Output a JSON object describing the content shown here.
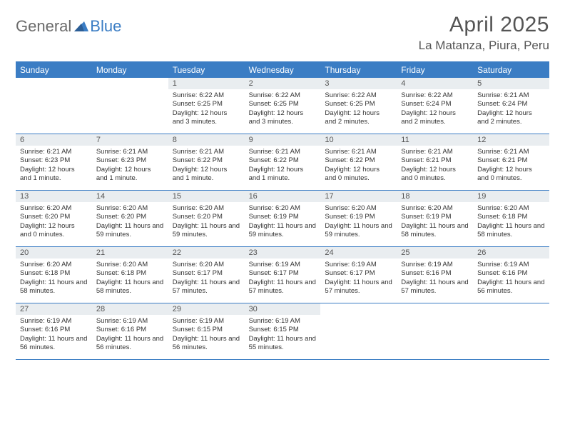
{
  "logo": {
    "text1": "General",
    "text2": "Blue"
  },
  "title": {
    "month": "April 2025",
    "location": "La Matanza, Piura, Peru"
  },
  "colors": {
    "header_bg": "#3b7dc4",
    "header_text": "#ffffff",
    "daynum_bg": "#e9edf0",
    "border": "#3b7dc4",
    "body_text": "#333333",
    "title_text": "#555555"
  },
  "dayNames": [
    "Sunday",
    "Monday",
    "Tuesday",
    "Wednesday",
    "Thursday",
    "Friday",
    "Saturday"
  ],
  "weeks": [
    [
      {
        "blank": true
      },
      {
        "blank": true
      },
      {
        "day": "1",
        "sunrise": "Sunrise: 6:22 AM",
        "sunset": "Sunset: 6:25 PM",
        "daylight": "Daylight: 12 hours and 3 minutes."
      },
      {
        "day": "2",
        "sunrise": "Sunrise: 6:22 AM",
        "sunset": "Sunset: 6:25 PM",
        "daylight": "Daylight: 12 hours and 3 minutes."
      },
      {
        "day": "3",
        "sunrise": "Sunrise: 6:22 AM",
        "sunset": "Sunset: 6:25 PM",
        "daylight": "Daylight: 12 hours and 2 minutes."
      },
      {
        "day": "4",
        "sunrise": "Sunrise: 6:22 AM",
        "sunset": "Sunset: 6:24 PM",
        "daylight": "Daylight: 12 hours and 2 minutes."
      },
      {
        "day": "5",
        "sunrise": "Sunrise: 6:21 AM",
        "sunset": "Sunset: 6:24 PM",
        "daylight": "Daylight: 12 hours and 2 minutes."
      }
    ],
    [
      {
        "day": "6",
        "sunrise": "Sunrise: 6:21 AM",
        "sunset": "Sunset: 6:23 PM",
        "daylight": "Daylight: 12 hours and 1 minute."
      },
      {
        "day": "7",
        "sunrise": "Sunrise: 6:21 AM",
        "sunset": "Sunset: 6:23 PM",
        "daylight": "Daylight: 12 hours and 1 minute."
      },
      {
        "day": "8",
        "sunrise": "Sunrise: 6:21 AM",
        "sunset": "Sunset: 6:22 PM",
        "daylight": "Daylight: 12 hours and 1 minute."
      },
      {
        "day": "9",
        "sunrise": "Sunrise: 6:21 AM",
        "sunset": "Sunset: 6:22 PM",
        "daylight": "Daylight: 12 hours and 1 minute."
      },
      {
        "day": "10",
        "sunrise": "Sunrise: 6:21 AM",
        "sunset": "Sunset: 6:22 PM",
        "daylight": "Daylight: 12 hours and 0 minutes."
      },
      {
        "day": "11",
        "sunrise": "Sunrise: 6:21 AM",
        "sunset": "Sunset: 6:21 PM",
        "daylight": "Daylight: 12 hours and 0 minutes."
      },
      {
        "day": "12",
        "sunrise": "Sunrise: 6:21 AM",
        "sunset": "Sunset: 6:21 PM",
        "daylight": "Daylight: 12 hours and 0 minutes."
      }
    ],
    [
      {
        "day": "13",
        "sunrise": "Sunrise: 6:20 AM",
        "sunset": "Sunset: 6:20 PM",
        "daylight": "Daylight: 12 hours and 0 minutes."
      },
      {
        "day": "14",
        "sunrise": "Sunrise: 6:20 AM",
        "sunset": "Sunset: 6:20 PM",
        "daylight": "Daylight: 11 hours and 59 minutes."
      },
      {
        "day": "15",
        "sunrise": "Sunrise: 6:20 AM",
        "sunset": "Sunset: 6:20 PM",
        "daylight": "Daylight: 11 hours and 59 minutes."
      },
      {
        "day": "16",
        "sunrise": "Sunrise: 6:20 AM",
        "sunset": "Sunset: 6:19 PM",
        "daylight": "Daylight: 11 hours and 59 minutes."
      },
      {
        "day": "17",
        "sunrise": "Sunrise: 6:20 AM",
        "sunset": "Sunset: 6:19 PM",
        "daylight": "Daylight: 11 hours and 59 minutes."
      },
      {
        "day": "18",
        "sunrise": "Sunrise: 6:20 AM",
        "sunset": "Sunset: 6:19 PM",
        "daylight": "Daylight: 11 hours and 58 minutes."
      },
      {
        "day": "19",
        "sunrise": "Sunrise: 6:20 AM",
        "sunset": "Sunset: 6:18 PM",
        "daylight": "Daylight: 11 hours and 58 minutes."
      }
    ],
    [
      {
        "day": "20",
        "sunrise": "Sunrise: 6:20 AM",
        "sunset": "Sunset: 6:18 PM",
        "daylight": "Daylight: 11 hours and 58 minutes."
      },
      {
        "day": "21",
        "sunrise": "Sunrise: 6:20 AM",
        "sunset": "Sunset: 6:18 PM",
        "daylight": "Daylight: 11 hours and 58 minutes."
      },
      {
        "day": "22",
        "sunrise": "Sunrise: 6:20 AM",
        "sunset": "Sunset: 6:17 PM",
        "daylight": "Daylight: 11 hours and 57 minutes."
      },
      {
        "day": "23",
        "sunrise": "Sunrise: 6:19 AM",
        "sunset": "Sunset: 6:17 PM",
        "daylight": "Daylight: 11 hours and 57 minutes."
      },
      {
        "day": "24",
        "sunrise": "Sunrise: 6:19 AM",
        "sunset": "Sunset: 6:17 PM",
        "daylight": "Daylight: 11 hours and 57 minutes."
      },
      {
        "day": "25",
        "sunrise": "Sunrise: 6:19 AM",
        "sunset": "Sunset: 6:16 PM",
        "daylight": "Daylight: 11 hours and 57 minutes."
      },
      {
        "day": "26",
        "sunrise": "Sunrise: 6:19 AM",
        "sunset": "Sunset: 6:16 PM",
        "daylight": "Daylight: 11 hours and 56 minutes."
      }
    ],
    [
      {
        "day": "27",
        "sunrise": "Sunrise: 6:19 AM",
        "sunset": "Sunset: 6:16 PM",
        "daylight": "Daylight: 11 hours and 56 minutes."
      },
      {
        "day": "28",
        "sunrise": "Sunrise: 6:19 AM",
        "sunset": "Sunset: 6:16 PM",
        "daylight": "Daylight: 11 hours and 56 minutes."
      },
      {
        "day": "29",
        "sunrise": "Sunrise: 6:19 AM",
        "sunset": "Sunset: 6:15 PM",
        "daylight": "Daylight: 11 hours and 56 minutes."
      },
      {
        "day": "30",
        "sunrise": "Sunrise: 6:19 AM",
        "sunset": "Sunset: 6:15 PM",
        "daylight": "Daylight: 11 hours and 55 minutes."
      },
      {
        "blank": true
      },
      {
        "blank": true
      },
      {
        "blank": true
      }
    ]
  ]
}
